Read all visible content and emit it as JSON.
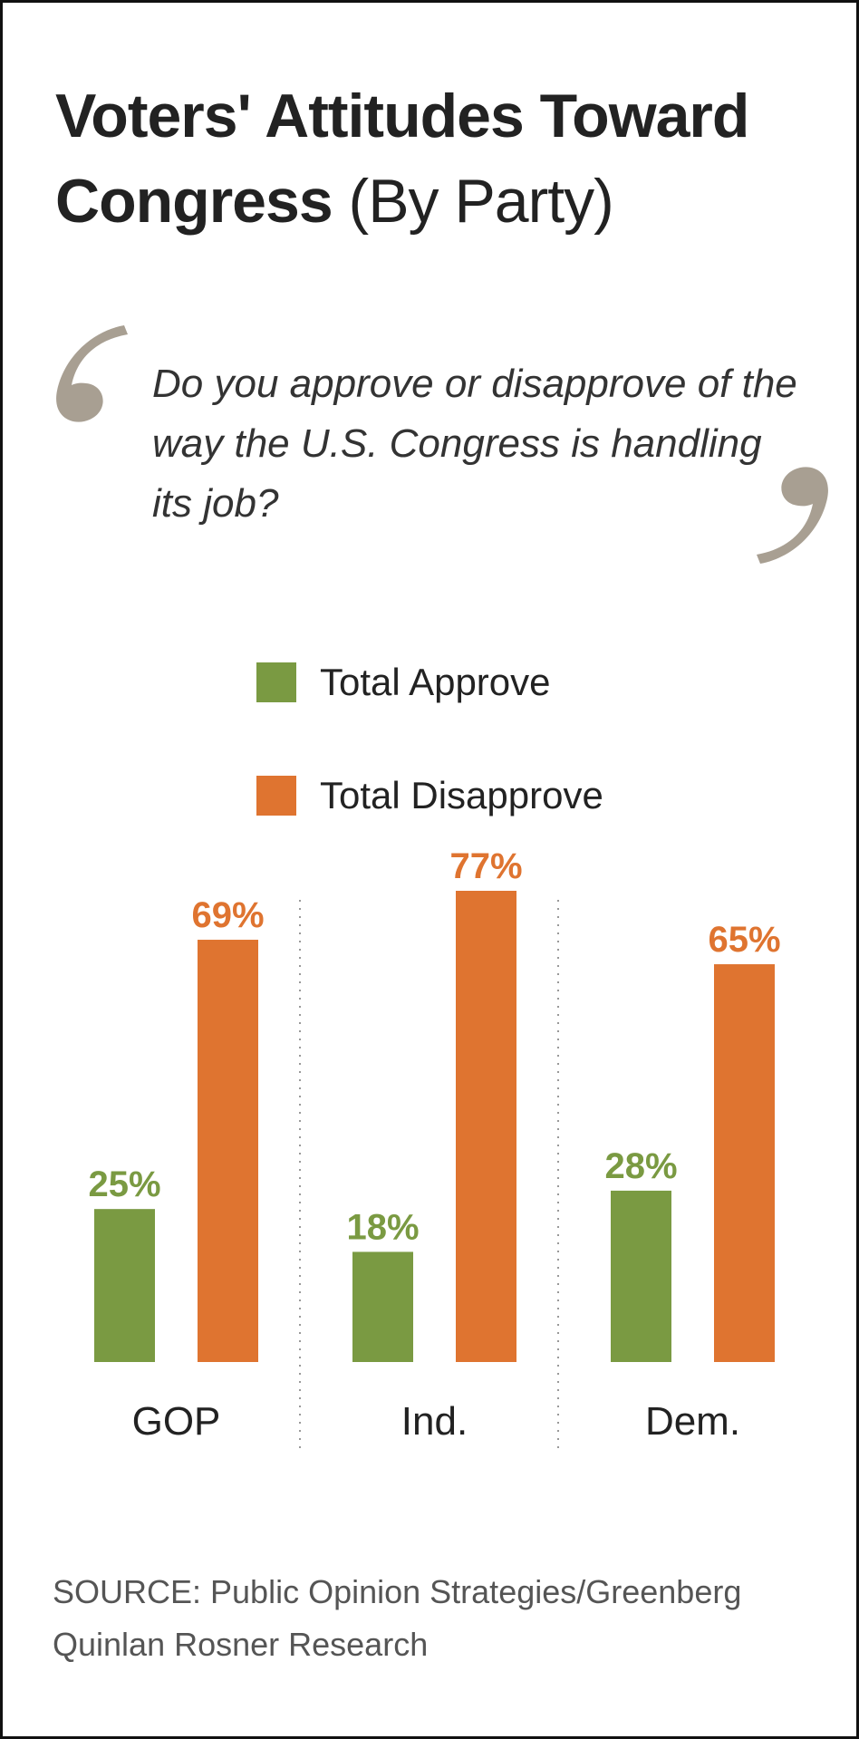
{
  "title": {
    "main": "Voters' Attitudes Toward Congress",
    "sub": "(By Party)"
  },
  "question": "Do you approve or disapprove of the way the U.S. Congress is handling its job?",
  "colors": {
    "approve": "#7a9a42",
    "disapprove": "#df7430",
    "quote": "#a89f92"
  },
  "icons": {
    "open_quote": "open-quote-icon",
    "close_quote": "close-quote-icon"
  },
  "legend": [
    {
      "label": "Total Approve",
      "color": "#7a9a42"
    },
    {
      "label": "Total Disapprove",
      "color": "#df7430"
    }
  ],
  "chart_data": {
    "type": "bar",
    "categories": [
      "GOP",
      "Ind.",
      "Dem."
    ],
    "series": [
      {
        "name": "Total Approve",
        "values": [
          25,
          18,
          28
        ],
        "labels": [
          "25%",
          "18%",
          "28%"
        ],
        "color": "#7a9a42"
      },
      {
        "name": "Total Disapprove",
        "values": [
          69,
          77,
          65
        ],
        "labels": [
          "69%",
          "77%",
          "65%"
        ],
        "color": "#df7430"
      }
    ],
    "unit": "%",
    "ylim": [
      0,
      77
    ],
    "grid": false,
    "legend_position": "top"
  },
  "source": "SOURCE: Public Opinion Strategies/Greenberg Quinlan Rosner Research"
}
